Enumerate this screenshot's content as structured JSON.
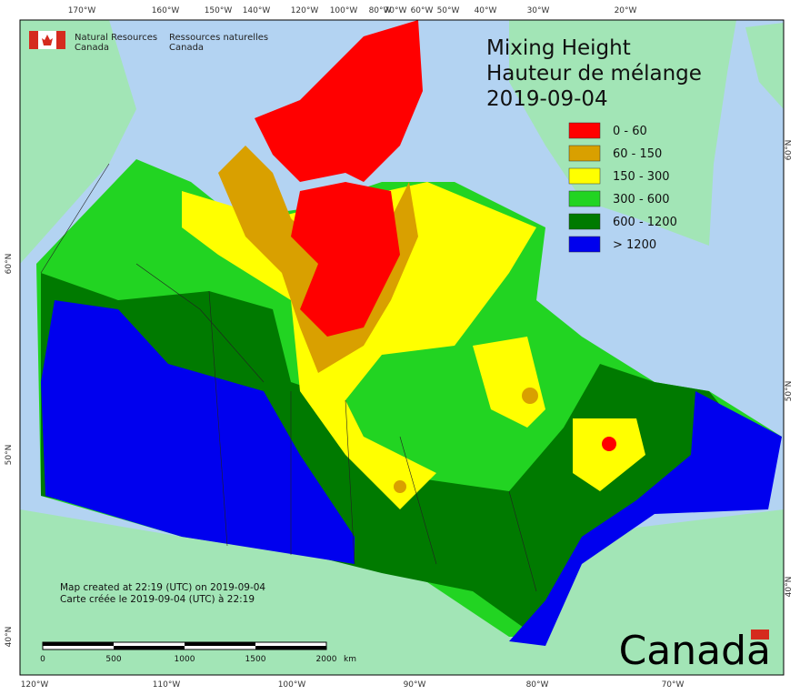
{
  "header": {
    "agency_en": "Natural Resources",
    "agency_en2": "Canada",
    "agency_fr": "Ressources naturelles",
    "agency_fr2": "Canada"
  },
  "title": [
    "Mixing Height",
    "Hauteur de mélange",
    "2019-09-04"
  ],
  "legend": [
    {
      "label": "0 - 60",
      "color": "#ff0000"
    },
    {
      "label": "60 - 150",
      "color": "#d9a000"
    },
    {
      "label": "150 - 300",
      "color": "#ffff00"
    },
    {
      "label": "300 - 600",
      "color": "#22d422"
    },
    {
      "label": "600 - 1200",
      "color": "#007a00"
    },
    {
      "label": "> 1200",
      "color": "#0000ee"
    }
  ],
  "top_ticks": [
    "170°W",
    "160°W",
    "150°W",
    "140°W",
    "120°W",
    "100°W",
    "80°W",
    "70°W",
    "60°W",
    "50°W",
    "40°W",
    "30°W",
    "20°W"
  ],
  "bottom_ticks": [
    "120°W",
    "110°W",
    "100°W",
    "90°W",
    "80°W",
    "70°W"
  ],
  "left_ticks": [
    "60°N",
    "50°N",
    "40°N"
  ],
  "right_ticks": [
    "60°N",
    "50°N",
    "40°N"
  ],
  "scale": {
    "labels": [
      "0",
      "500",
      "1000",
      "1500",
      "2000"
    ],
    "unit": "km"
  },
  "notes": [
    "Map created at 22:19 (UTC) on 2019-09-04",
    "Carte créée le 2019-09-04 (UTC) à 22:19"
  ],
  "wordmark": "Canada"
}
